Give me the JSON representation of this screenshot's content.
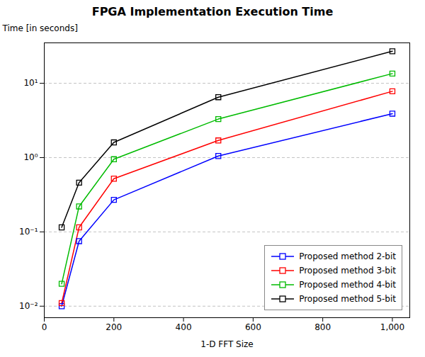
{
  "chart_data": {
    "type": "line",
    "title": "FPGA Implementation Execution Time",
    "x_label": "1-D FFT Size",
    "y_label": "Time [in seconds]",
    "x": [
      50,
      100,
      200,
      500,
      1000
    ],
    "series": [
      {
        "name": "Proposed method 2-bit",
        "color": "#0000ff",
        "values": [
          0.01,
          0.075,
          0.27,
          1.05,
          3.9
        ]
      },
      {
        "name": "Proposed method 3-bit",
        "color": "#ff0000",
        "values": [
          0.011,
          0.115,
          0.52,
          1.7,
          7.8
        ]
      },
      {
        "name": "Proposed method 4-bit",
        "color": "#00bb00",
        "values": [
          0.02,
          0.22,
          0.95,
          3.3,
          13.5
        ]
      },
      {
        "name": "Proposed method 5-bit",
        "color": "#000000",
        "values": [
          0.115,
          0.46,
          1.6,
          6.5,
          27.0
        ]
      }
    ],
    "xlim": [
      0,
      1050
    ],
    "xticks": [
      0,
      200,
      400,
      600,
      800,
      {
        "value": 1000,
        "label": "1,000"
      }
    ],
    "ylim": [
      0.007,
      35
    ],
    "yticks": [
      {
        "value": 0.01,
        "label": "10⁻²"
      },
      {
        "value": 0.1,
        "label": "10⁻¹"
      },
      {
        "value": 1.0,
        "label": "10⁰"
      },
      {
        "value": 10.0,
        "label": "10¹"
      }
    ],
    "log": "y",
    "grid": true,
    "legend": "lower right",
    "marker": "square",
    "line_style": "solid"
  }
}
